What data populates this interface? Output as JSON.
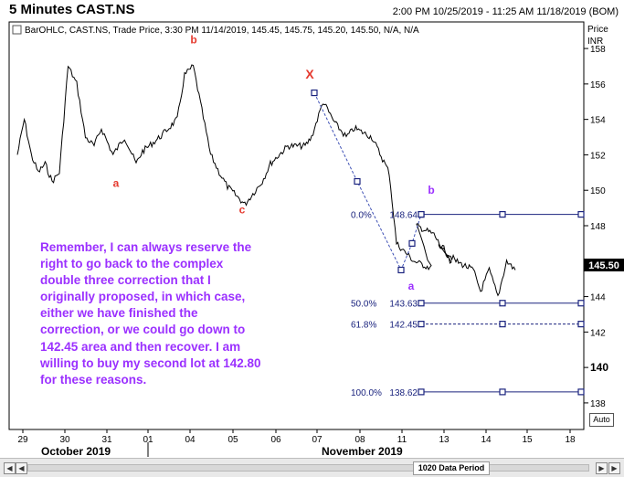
{
  "header": {
    "title": "5 Minutes CAST.NS",
    "date_range": "2:00 PM 10/25/2019 - 11:25 AM 11/18/2019 (BOM)"
  },
  "legend": {
    "text": "BarOHLC, CAST.NS, Trade Price, 3:30 PM 11/14/2019, 145.45, 145.75, 145.20, 145.50, N/A, N/A"
  },
  "price_axis": {
    "line1": "Price",
    "line2": "INR"
  },
  "last_price": "145.50",
  "auto_label": "Auto",
  "period_label": "1020 Data Period",
  "annotation_text": "Remember, I can always reserve the right to go back to the complex double three correction that I originally proposed, in which case, either we have finished the correction, or we could go down to 142.45 area and then recover. I am willing to buy my second lot at 142.80 for these reasons.",
  "colors": {
    "wave_red": "#e53a2f",
    "wave_purple": "#9b30ff",
    "fib_line": "#1a237e",
    "price_bar": "#000000"
  },
  "chart_data": {
    "type": "line",
    "series": [
      {
        "x": [
          "10/29",
          "10/29",
          "10/29",
          "10/29",
          "10/29",
          "10/29",
          "10/30",
          "10/30",
          "10/30",
          "10/30",
          "10/30",
          "10/31",
          "10/31",
          "10/31",
          "10/31",
          "11/01",
          "11/01",
          "11/01",
          "11/04",
          "11/04",
          "11/04",
          "11/04",
          "11/04",
          "11/05",
          "11/05",
          "11/05",
          "11/06",
          "11/06",
          "11/06",
          "11/07",
          "11/07",
          "11/07",
          "11/07",
          "11/08",
          "11/08",
          "11/08",
          "11/11",
          "11/11",
          "11/11",
          "11/12",
          "11/12",
          "11/12",
          "11/13",
          "11/13",
          "11/13",
          "11/14",
          "11/14",
          "11/14",
          "11/14",
          "11/14"
        ],
        "values": [
          152,
          154,
          152,
          151,
          151.5,
          150.5,
          151,
          157,
          156,
          153,
          152.5,
          153.5,
          152,
          153,
          151.5,
          152.2,
          153,
          154,
          156.5,
          157,
          154.5,
          152,
          151,
          150.2,
          149.2,
          150.5,
          151.5,
          152.5,
          152.5,
          153,
          155,
          153.8,
          153,
          153.5,
          153,
          151,
          147,
          146,
          145.6,
          148,
          147.5,
          145.8,
          147,
          146,
          145.5,
          144.3,
          145.5,
          144,
          146,
          145.5
        ]
      }
    ],
    "x_ticks": [
      "29",
      "30",
      "31",
      "01",
      "04",
      "05",
      "06",
      "07",
      "08",
      "11",
      "13",
      "14",
      "15",
      "18"
    ],
    "month_labels": [
      "October 2019",
      "November 2019"
    ],
    "y_ticks": [
      138,
      140,
      142,
      144,
      146,
      148,
      150,
      152,
      154,
      156,
      158
    ],
    "ylim": [
      136.5,
      159.5
    ],
    "fib_levels": [
      {
        "label": "0.0%",
        "value": 148.64,
        "value_text": "148.64",
        "style": "solid"
      },
      {
        "label": "50.0%",
        "value": 143.63,
        "value_text": "143.63",
        "style": "solid"
      },
      {
        "label": "61.8%",
        "value": 142.45,
        "value_text": "142.45",
        "style": "dashed"
      },
      {
        "label": "100.0%",
        "value": 138.62,
        "value_text": "138.62",
        "style": "solid"
      }
    ],
    "wave_labels": [
      {
        "text": "a",
        "x": "10/31",
        "y": 150.2,
        "color": "red"
      },
      {
        "text": "b",
        "x": "11/04",
        "y": 158.3,
        "color": "red"
      },
      {
        "text": "c",
        "x": "11/05",
        "y": 148.7,
        "color": "red"
      },
      {
        "text": "X",
        "x": "11/07",
        "y": 156.3,
        "color": "red"
      },
      {
        "text": "b",
        "x": "11/12",
        "y": 149.8,
        "color": "purple"
      },
      {
        "text": "a",
        "x": "11/11",
        "y": 144.4,
        "color": "purple"
      }
    ]
  }
}
